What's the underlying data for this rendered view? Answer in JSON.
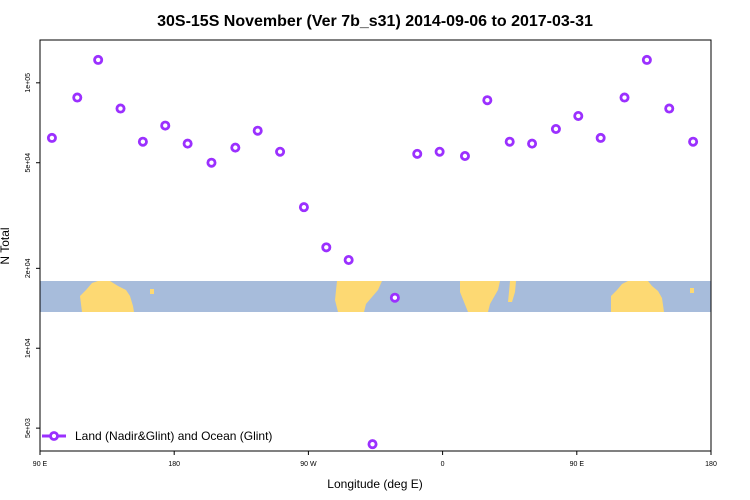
{
  "chart_data": {
    "type": "scatter",
    "title": "30S-15S November (Ver 7b_s31)   2014-09-06 to 2017-03-31",
    "xlabel": "Longitude (deg E)",
    "ylabel": "N Total",
    "y_scale": "log",
    "x_ticks": [
      {
        "value": 90,
        "label": "90 E"
      },
      {
        "value": 180,
        "label": "180"
      },
      {
        "value": 270,
        "label": "90 W"
      },
      {
        "value": 360,
        "label": "0"
      },
      {
        "value": 450,
        "label": "90 E"
      },
      {
        "value": 540,
        "label": "180"
      }
    ],
    "y_ticks": [
      {
        "value": 5000,
        "label": "5e+03"
      },
      {
        "value": 10000,
        "label": "1e+04"
      },
      {
        "value": 20000,
        "label": "2e+04"
      },
      {
        "value": 50000,
        "label": "5e+04"
      },
      {
        "value": 100000,
        "label": "1e+05"
      }
    ],
    "xlim": [
      90,
      540
    ],
    "ylim": [
      4100,
      145000
    ],
    "grid": false,
    "legend_position": "bottom-left",
    "series": [
      {
        "name": "Land (Nadir&Glint) and Ocean (Glint)",
        "color": "#9b30ff",
        "marker": "hollow-circle",
        "x": [
          98,
          115,
          129,
          144,
          159,
          174,
          189,
          205,
          221,
          236,
          251,
          267,
          282,
          297,
          313,
          328,
          343,
          358,
          375,
          390,
          405,
          420,
          436,
          451,
          466,
          482,
          497,
          512,
          528
        ],
        "y": [
          62000,
          88000,
          122000,
          80000,
          60000,
          69000,
          59000,
          50000,
          57000,
          66000,
          55000,
          34000,
          24000,
          21500,
          4350,
          15500,
          54000,
          55000,
          53000,
          86000,
          60000,
          59000,
          67000,
          75000,
          62000,
          88000,
          122000,
          80000,
          60000
        ]
      }
    ]
  },
  "map_strip": {
    "ocean_color": "#a7bcdb",
    "land_color": "#fdd973"
  }
}
